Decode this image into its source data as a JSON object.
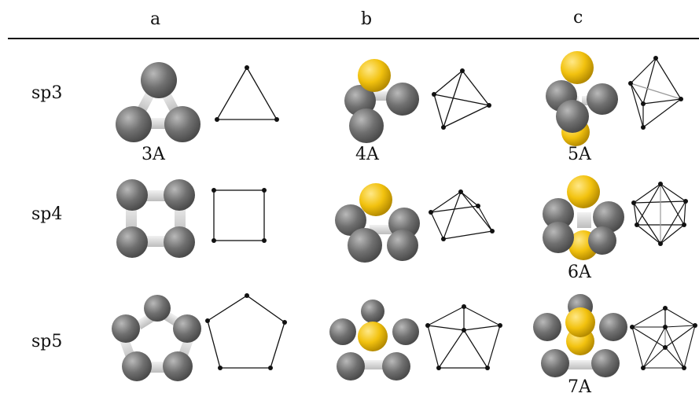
{
  "columns": [
    "a",
    "b",
    "c"
  ],
  "rows": [
    "sp3",
    "sp4",
    "sp5"
  ],
  "labels": {
    "row1": {
      "a": "3A",
      "b": "4A",
      "c": "5A"
    },
    "row2": {
      "c": "6A"
    },
    "row3": {
      "c": "7A"
    }
  },
  "colors": {
    "atom_gray": "#6d6d6d",
    "atom_yellow": "#f2c20f",
    "line": "#111111",
    "bond": "#d8d8d8"
  }
}
